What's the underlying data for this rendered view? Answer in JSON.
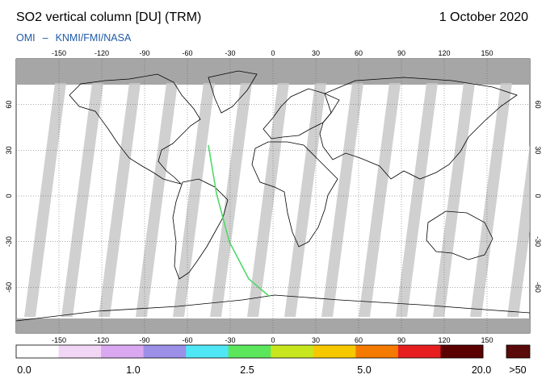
{
  "header": {
    "title": "SO2 vertical column [DU] (TRM)",
    "date": "1 October 2020",
    "credit_instrument": "OMI",
    "credit_separator": "–",
    "credit_institutions": "KNMI/FMI/NASA"
  },
  "map": {
    "lon_ticks": [
      -150,
      -120,
      -90,
      -60,
      -30,
      0,
      30,
      60,
      90,
      120,
      150
    ],
    "lat_ticks": [
      60,
      30,
      0,
      -30,
      -60
    ],
    "lon_range": [
      -180,
      180
    ],
    "lat_range": [
      -90,
      90
    ],
    "grid": "dotted",
    "colors": {
      "land_outline": "#000000",
      "swath_gap": "#c8c8c8",
      "no_data": "#a6a6a6",
      "ocean_bg": "#ffffff"
    }
  },
  "colorbar": {
    "labels": [
      "0.0",
      "1.0",
      "2.5",
      "5.0",
      "20.0",
      ">50"
    ],
    "colors": [
      "#ffffff",
      "#f2d6f5",
      "#d9a8f0",
      "#9b8fe8",
      "#4fe6f5",
      "#5ce65c",
      "#c8e61e",
      "#f5c800",
      "#f57a00",
      "#e61e1e",
      "#5a0000"
    ],
    "overflow_color": "#5a0a0a"
  }
}
